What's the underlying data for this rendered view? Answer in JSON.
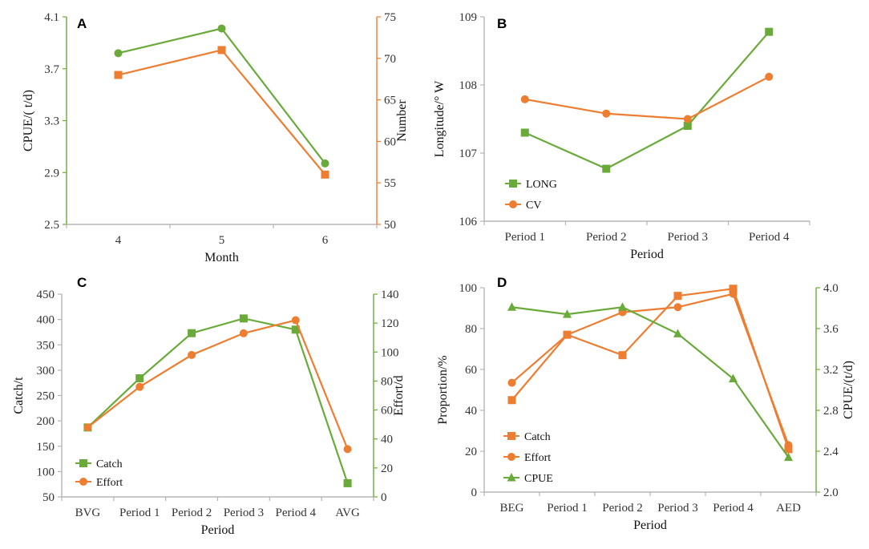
{
  "colors": {
    "green": "#6aaa3a",
    "orange": "#ed7d31",
    "axis": "#b5b5b5"
  },
  "chart_data": [
    {
      "panel_label": "A",
      "type": "line",
      "categories": [
        "4",
        "5",
        "6"
      ],
      "xlabel": "Month",
      "ylabel_left": "CPUE/( t/d)",
      "ylabel_right": "Number",
      "ylim_left": [
        2.5,
        4.1
      ],
      "yticks_left": [
        "2.5",
        "2.9",
        "3.3",
        "3.7",
        "4.1"
      ],
      "ylim_right": [
        50,
        75
      ],
      "yticks_right": [
        "50",
        "55",
        "60",
        "65",
        "70",
        "75"
      ],
      "series": [
        {
          "name": "CPUE",
          "axis": "left",
          "color": "#6aaa3a",
          "marker": "circle",
          "values": [
            3.82,
            4.01,
            2.97
          ]
        },
        {
          "name": "Number",
          "axis": "right",
          "color": "#ed7d31",
          "marker": "square",
          "values": [
            68,
            71,
            56
          ]
        }
      ]
    },
    {
      "panel_label": "B",
      "type": "line",
      "categories": [
        "Period 1",
        "Period 2",
        "Period 3",
        "Period 4"
      ],
      "xlabel": "Period",
      "ylabel_left": "Longitude/° W",
      "ylim_left": [
        106,
        109
      ],
      "yticks_left": [
        "106",
        "107",
        "108",
        "109"
      ],
      "series": [
        {
          "name": "LONG",
          "axis": "left",
          "color": "#6aaa3a",
          "marker": "square",
          "values": [
            107.3,
            106.77,
            107.4,
            108.78
          ]
        },
        {
          "name": "CV",
          "axis": "left",
          "color": "#ed7d31",
          "marker": "circle",
          "values": [
            107.79,
            107.58,
            107.5,
            108.12
          ]
        }
      ]
    },
    {
      "panel_label": "C",
      "type": "line",
      "categories": [
        "BVG",
        "Period 1",
        "Period 2",
        "Period 3",
        "Period 4",
        "AVG"
      ],
      "xlabel": "Period",
      "ylabel_left": "Catch/t",
      "ylabel_right": "Effort/d",
      "ylim_left": [
        50,
        450
      ],
      "yticks_left": [
        "50",
        "100",
        "150",
        "200",
        "250",
        "300",
        "350",
        "400",
        "450"
      ],
      "ylim_right": [
        0,
        140
      ],
      "yticks_right": [
        "0",
        "20",
        "40",
        "60",
        "80",
        "100",
        "120",
        "140"
      ],
      "series": [
        {
          "name": "Catch",
          "axis": "left",
          "color": "#6aaa3a",
          "marker": "square",
          "values": [
            187,
            284,
            373,
            402,
            380,
            77
          ]
        },
        {
          "name": "Effort",
          "axis": "right",
          "color": "#ed7d31",
          "marker": "circle",
          "values": [
            48,
            76,
            98,
            113,
            122,
            33
          ]
        }
      ]
    },
    {
      "panel_label": "D",
      "type": "line",
      "categories": [
        "BEG",
        "Period 1",
        "Period 2",
        "Period 3",
        "Period 4",
        "AED"
      ],
      "xlabel": "Period",
      "ylabel_left": "Proportion/%",
      "ylabel_right": "CPUE/(t/d)",
      "ylim_left": [
        0,
        100
      ],
      "yticks_left": [
        "0",
        "20",
        "40",
        "60",
        "80",
        "100"
      ],
      "ylim_right": [
        2.0,
        4.0
      ],
      "yticks_right": [
        "2.0",
        "2.4",
        "2.8",
        "3.2",
        "3.6",
        "4.0"
      ],
      "series": [
        {
          "name": "Catch",
          "axis": "left",
          "color": "#ed7d31",
          "marker": "square",
          "values": [
            45,
            77,
            67,
            96,
            99.5,
            21
          ]
        },
        {
          "name": "Effort",
          "axis": "left",
          "color": "#ed7d31",
          "marker": "circle",
          "values": [
            53.5,
            77,
            88,
            90.5,
            97,
            23
          ]
        },
        {
          "name": "CPUE",
          "axis": "right",
          "color": "#6aaa3a",
          "marker": "triangle",
          "values": [
            3.81,
            3.74,
            3.81,
            3.55,
            3.11,
            2.34
          ]
        }
      ]
    }
  ]
}
